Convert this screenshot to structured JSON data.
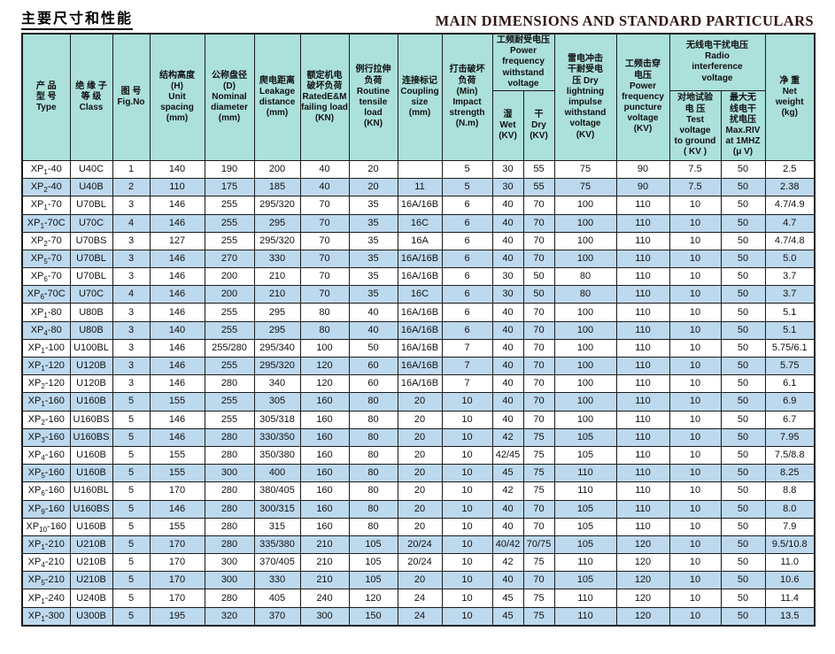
{
  "page": {
    "title_zh": "主要尺寸和性能",
    "title_en": "MAIN DIMENSIONS AND STANDARD PARTICULARS"
  },
  "colors": {
    "header_bg": "#ace0db",
    "row_alt_bg": "#bdd9ee",
    "border": "#1b1b1b",
    "title_en_color": "#2f1513"
  },
  "table": {
    "headers": {
      "type": "产 品\n型 号\nType",
      "class": "绝 缘 子\n等 级\nClass",
      "fig_no": "图 号\nFig.No",
      "unit_spacing": "结构高度\n(H)\nUnit\nspacing\n(mm)",
      "nominal_diameter": "公称盘径\n(D)\nNominal\ndiameter\n(mm)",
      "leakage_distance": "爬电距离\nLeakage\ndistance\n(mm)",
      "rated_load": "额定机电\n破坏负荷\nRatedE&M\nfailing load\n(KN)",
      "routine_load": "例行拉伸\n负荷\nRoutine\ntensile\nload\n(KN)",
      "coupling_size": "连接标记\nCoupling\nsize\n(mm)",
      "impact_strength": "打击破坏\n负荷\n(Min)\nImpact\nstrength\n(N.m)",
      "pf_withstand_group": "工频耐受电压\nPower\nfrequency\nwithstand\nvoltage",
      "wet": "湿\nWet\n(KV)",
      "dry": "干\nDry\n(KV)",
      "lightning_impulse": "雷电冲击\n干耐受电\n压 Dry\nlightning\nimpulse\nwithstand\nvoltage\n(KV)",
      "puncture_voltage": "工频击穿\n电压\nPower\nfrequency\npuncture\nvoltage\n(KV)",
      "riv_group": "无线电干扰电压\nRadio\ninterference\nvoltage",
      "test_voltage": "对地试验\n电 压\nTest\nvoltage\nto ground\n( KV )",
      "max_riv": "最大无\n线电干\n扰电压\nMax.RIV\nat 1MHZ\n(μ V)",
      "net_weight": "净 重\nNet\nweight\n(kg)"
    },
    "column_keys": [
      "type",
      "class",
      "fig-no",
      "unit-spacing",
      "nominal-diameter",
      "leakage-distance",
      "rated-load",
      "routine-load",
      "coupling-size",
      "impact-strength",
      "wet-kv",
      "dry-kv",
      "lightning-impulse-kv",
      "puncture-voltage-kv",
      "test-voltage-kv",
      "max-riv-uv",
      "net-weight-kg"
    ],
    "rows": [
      [
        "XP1-40",
        "U40C",
        "1",
        "140",
        "190",
        "200",
        "40",
        "20",
        "",
        "5",
        "30",
        "55",
        "75",
        "90",
        "7.5",
        "50",
        "2.5"
      ],
      [
        "XP2-40",
        "U40B",
        "2",
        "110",
        "175",
        "185",
        "40",
        "20",
        "11",
        "5",
        "30",
        "55",
        "75",
        "90",
        "7.5",
        "50",
        "2.38"
      ],
      [
        "XP1-70",
        "U70BL",
        "3",
        "146",
        "255",
        "295/320",
        "70",
        "35",
        "16A/16B",
        "6",
        "40",
        "70",
        "100",
        "110",
        "10",
        "50",
        "4.7/4.9"
      ],
      [
        "XP1-70C",
        "U70C",
        "4",
        "146",
        "255",
        "295",
        "70",
        "35",
        "16C",
        "6",
        "40",
        "70",
        "100",
        "110",
        "10",
        "50",
        "4.7"
      ],
      [
        "XP2-70",
        "U70BS",
        "3",
        "127",
        "255",
        "295/320",
        "70",
        "35",
        "16A",
        "6",
        "40",
        "70",
        "100",
        "110",
        "10",
        "50",
        "4.7/4.8"
      ],
      [
        "XP5-70",
        "U70BL",
        "3",
        "146",
        "270",
        "330",
        "70",
        "35",
        "16A/16B",
        "6",
        "40",
        "70",
        "100",
        "110",
        "10",
        "50",
        "5.0"
      ],
      [
        "XP6-70",
        "U70BL",
        "3",
        "146",
        "200",
        "210",
        "70",
        "35",
        "16A/16B",
        "6",
        "30",
        "50",
        "80",
        "110",
        "10",
        "50",
        "3.7"
      ],
      [
        "XP6-70C",
        "U70C",
        "4",
        "146",
        "200",
        "210",
        "70",
        "35",
        "16C",
        "6",
        "30",
        "50",
        "80",
        "110",
        "10",
        "50",
        "3.7"
      ],
      [
        "XP1-80",
        "U80B",
        "3",
        "146",
        "255",
        "295",
        "80",
        "40",
        "16A/16B",
        "6",
        "40",
        "70",
        "100",
        "110",
        "10",
        "50",
        "5.1"
      ],
      [
        "XP4-80",
        "U80B",
        "3",
        "140",
        "255",
        "295",
        "80",
        "40",
        "16A/16B",
        "6",
        "40",
        "70",
        "100",
        "110",
        "10",
        "50",
        "5.1"
      ],
      [
        "XP1-100",
        "U100BL",
        "3",
        "146",
        "255/280",
        "295/340",
        "100",
        "50",
        "16A/16B",
        "7",
        "40",
        "70",
        "100",
        "110",
        "10",
        "50",
        "5.75/6.1"
      ],
      [
        "XP1-120",
        "U120B",
        "3",
        "146",
        "255",
        "295/320",
        "120",
        "60",
        "16A/16B",
        "7",
        "40",
        "70",
        "100",
        "110",
        "10",
        "50",
        "5.75"
      ],
      [
        "XP2-120",
        "U120B",
        "3",
        "146",
        "280",
        "340",
        "120",
        "60",
        "16A/16B",
        "7",
        "40",
        "70",
        "100",
        "110",
        "10",
        "50",
        "6.1"
      ],
      [
        "XP1-160",
        "U160B",
        "5",
        "155",
        "255",
        "305",
        "160",
        "80",
        "20",
        "10",
        "40",
        "70",
        "100",
        "110",
        "10",
        "50",
        "6.9"
      ],
      [
        "XP2-160",
        "U160BS",
        "5",
        "146",
        "255",
        "305/318",
        "160",
        "80",
        "20",
        "10",
        "40",
        "70",
        "100",
        "110",
        "10",
        "50",
        "6.7"
      ],
      [
        "XP3-160",
        "U160BS",
        "5",
        "146",
        "280",
        "330/350",
        "160",
        "80",
        "20",
        "10",
        "42",
        "75",
        "105",
        "110",
        "10",
        "50",
        "7.95"
      ],
      [
        "XP4-160",
        "U160B",
        "5",
        "155",
        "280",
        "350/380",
        "160",
        "80",
        "20",
        "10",
        "42/45",
        "75",
        "105",
        "110",
        "10",
        "50",
        "7.5/8.8"
      ],
      [
        "XP5-160",
        "U160B",
        "5",
        "155",
        "300",
        "400",
        "160",
        "80",
        "20",
        "10",
        "45",
        "75",
        "110",
        "110",
        "10",
        "50",
        "8.25"
      ],
      [
        "XP6-160",
        "U160BL",
        "5",
        "170",
        "280",
        "380/405",
        "160",
        "80",
        "20",
        "10",
        "42",
        "75",
        "110",
        "110",
        "10",
        "50",
        "8.8"
      ],
      [
        "XP9-160",
        "U160BS",
        "5",
        "146",
        "280",
        "300/315",
        "160",
        "80",
        "20",
        "10",
        "40",
        "70",
        "105",
        "110",
        "10",
        "50",
        "8.0"
      ],
      [
        "XP10-160",
        "U160B",
        "5",
        "155",
        "280",
        "315",
        "160",
        "80",
        "20",
        "10",
        "40",
        "70",
        "105",
        "110",
        "10",
        "50",
        "7.9"
      ],
      [
        "XP1-210",
        "U210B",
        "5",
        "170",
        "280",
        "335/380",
        "210",
        "105",
        "20/24",
        "10",
        "40/42",
        "70/75",
        "105",
        "120",
        "10",
        "50",
        "9.5/10.8"
      ],
      [
        "XP4-210",
        "U210B",
        "5",
        "170",
        "300",
        "370/405",
        "210",
        "105",
        "20/24",
        "10",
        "42",
        "75",
        "110",
        "120",
        "10",
        "50",
        "11.0"
      ],
      [
        "XP5-210",
        "U210B",
        "5",
        "170",
        "300",
        "330",
        "210",
        "105",
        "20",
        "10",
        "40",
        "70",
        "105",
        "120",
        "10",
        "50",
        "10.6"
      ],
      [
        "XP1-240",
        "U240B",
        "5",
        "170",
        "280",
        "405",
        "240",
        "120",
        "24",
        "10",
        "45",
        "75",
        "110",
        "120",
        "10",
        "50",
        "11.4"
      ],
      [
        "XP1-300",
        "U300B",
        "5",
        "195",
        "320",
        "370",
        "300",
        "150",
        "24",
        "10",
        "45",
        "75",
        "110",
        "120",
        "10",
        "50",
        "13.5"
      ]
    ]
  }
}
